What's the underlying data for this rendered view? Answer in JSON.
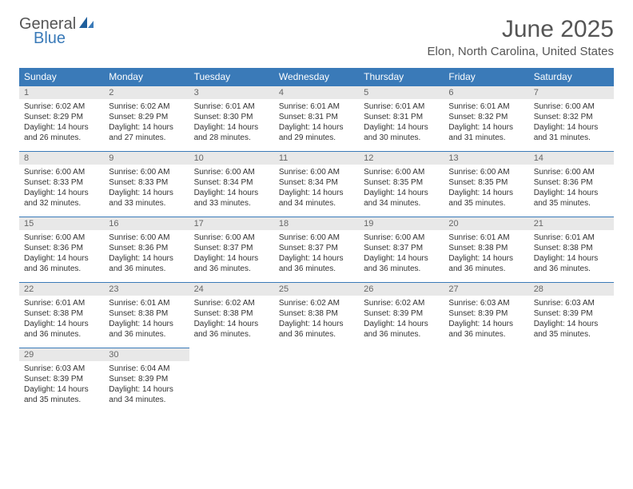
{
  "brand": {
    "line1": "General",
    "line2": "Blue"
  },
  "title": "June 2025",
  "location": "Elon, North Carolina, United States",
  "colors": {
    "header_bg": "#3a7ab8",
    "header_fg": "#ffffff",
    "daynum_bg": "#e8e8e8",
    "daynum_fg": "#666666",
    "border": "#3a7ab8",
    "text": "#333333",
    "title_fg": "#555555",
    "logo_accent": "#3a7ab8"
  },
  "typography": {
    "title_fontsize_pt": 22,
    "location_fontsize_pt": 11,
    "header_fontsize_pt": 9,
    "daynum_fontsize_pt": 8,
    "body_fontsize_pt": 7.5
  },
  "weekdays": [
    "Sunday",
    "Monday",
    "Tuesday",
    "Wednesday",
    "Thursday",
    "Friday",
    "Saturday"
  ],
  "weeks": [
    [
      {
        "n": "1",
        "sr": "Sunrise: 6:02 AM",
        "ss": "Sunset: 8:29 PM",
        "dl": "Daylight: 14 hours and 26 minutes."
      },
      {
        "n": "2",
        "sr": "Sunrise: 6:02 AM",
        "ss": "Sunset: 8:29 PM",
        "dl": "Daylight: 14 hours and 27 minutes."
      },
      {
        "n": "3",
        "sr": "Sunrise: 6:01 AM",
        "ss": "Sunset: 8:30 PM",
        "dl": "Daylight: 14 hours and 28 minutes."
      },
      {
        "n": "4",
        "sr": "Sunrise: 6:01 AM",
        "ss": "Sunset: 8:31 PM",
        "dl": "Daylight: 14 hours and 29 minutes."
      },
      {
        "n": "5",
        "sr": "Sunrise: 6:01 AM",
        "ss": "Sunset: 8:31 PM",
        "dl": "Daylight: 14 hours and 30 minutes."
      },
      {
        "n": "6",
        "sr": "Sunrise: 6:01 AM",
        "ss": "Sunset: 8:32 PM",
        "dl": "Daylight: 14 hours and 31 minutes."
      },
      {
        "n": "7",
        "sr": "Sunrise: 6:00 AM",
        "ss": "Sunset: 8:32 PM",
        "dl": "Daylight: 14 hours and 31 minutes."
      }
    ],
    [
      {
        "n": "8",
        "sr": "Sunrise: 6:00 AM",
        "ss": "Sunset: 8:33 PM",
        "dl": "Daylight: 14 hours and 32 minutes."
      },
      {
        "n": "9",
        "sr": "Sunrise: 6:00 AM",
        "ss": "Sunset: 8:33 PM",
        "dl": "Daylight: 14 hours and 33 minutes."
      },
      {
        "n": "10",
        "sr": "Sunrise: 6:00 AM",
        "ss": "Sunset: 8:34 PM",
        "dl": "Daylight: 14 hours and 33 minutes."
      },
      {
        "n": "11",
        "sr": "Sunrise: 6:00 AM",
        "ss": "Sunset: 8:34 PM",
        "dl": "Daylight: 14 hours and 34 minutes."
      },
      {
        "n": "12",
        "sr": "Sunrise: 6:00 AM",
        "ss": "Sunset: 8:35 PM",
        "dl": "Daylight: 14 hours and 34 minutes."
      },
      {
        "n": "13",
        "sr": "Sunrise: 6:00 AM",
        "ss": "Sunset: 8:35 PM",
        "dl": "Daylight: 14 hours and 35 minutes."
      },
      {
        "n": "14",
        "sr": "Sunrise: 6:00 AM",
        "ss": "Sunset: 8:36 PM",
        "dl": "Daylight: 14 hours and 35 minutes."
      }
    ],
    [
      {
        "n": "15",
        "sr": "Sunrise: 6:00 AM",
        "ss": "Sunset: 8:36 PM",
        "dl": "Daylight: 14 hours and 36 minutes."
      },
      {
        "n": "16",
        "sr": "Sunrise: 6:00 AM",
        "ss": "Sunset: 8:36 PM",
        "dl": "Daylight: 14 hours and 36 minutes."
      },
      {
        "n": "17",
        "sr": "Sunrise: 6:00 AM",
        "ss": "Sunset: 8:37 PM",
        "dl": "Daylight: 14 hours and 36 minutes."
      },
      {
        "n": "18",
        "sr": "Sunrise: 6:00 AM",
        "ss": "Sunset: 8:37 PM",
        "dl": "Daylight: 14 hours and 36 minutes."
      },
      {
        "n": "19",
        "sr": "Sunrise: 6:00 AM",
        "ss": "Sunset: 8:37 PM",
        "dl": "Daylight: 14 hours and 36 minutes."
      },
      {
        "n": "20",
        "sr": "Sunrise: 6:01 AM",
        "ss": "Sunset: 8:38 PM",
        "dl": "Daylight: 14 hours and 36 minutes."
      },
      {
        "n": "21",
        "sr": "Sunrise: 6:01 AM",
        "ss": "Sunset: 8:38 PM",
        "dl": "Daylight: 14 hours and 36 minutes."
      }
    ],
    [
      {
        "n": "22",
        "sr": "Sunrise: 6:01 AM",
        "ss": "Sunset: 8:38 PM",
        "dl": "Daylight: 14 hours and 36 minutes."
      },
      {
        "n": "23",
        "sr": "Sunrise: 6:01 AM",
        "ss": "Sunset: 8:38 PM",
        "dl": "Daylight: 14 hours and 36 minutes."
      },
      {
        "n": "24",
        "sr": "Sunrise: 6:02 AM",
        "ss": "Sunset: 8:38 PM",
        "dl": "Daylight: 14 hours and 36 minutes."
      },
      {
        "n": "25",
        "sr": "Sunrise: 6:02 AM",
        "ss": "Sunset: 8:38 PM",
        "dl": "Daylight: 14 hours and 36 minutes."
      },
      {
        "n": "26",
        "sr": "Sunrise: 6:02 AM",
        "ss": "Sunset: 8:39 PM",
        "dl": "Daylight: 14 hours and 36 minutes."
      },
      {
        "n": "27",
        "sr": "Sunrise: 6:03 AM",
        "ss": "Sunset: 8:39 PM",
        "dl": "Daylight: 14 hours and 36 minutes."
      },
      {
        "n": "28",
        "sr": "Sunrise: 6:03 AM",
        "ss": "Sunset: 8:39 PM",
        "dl": "Daylight: 14 hours and 35 minutes."
      }
    ],
    [
      {
        "n": "29",
        "sr": "Sunrise: 6:03 AM",
        "ss": "Sunset: 8:39 PM",
        "dl": "Daylight: 14 hours and 35 minutes."
      },
      {
        "n": "30",
        "sr": "Sunrise: 6:04 AM",
        "ss": "Sunset: 8:39 PM",
        "dl": "Daylight: 14 hours and 34 minutes."
      },
      {
        "empty": true
      },
      {
        "empty": true
      },
      {
        "empty": true
      },
      {
        "empty": true
      },
      {
        "empty": true
      }
    ]
  ]
}
